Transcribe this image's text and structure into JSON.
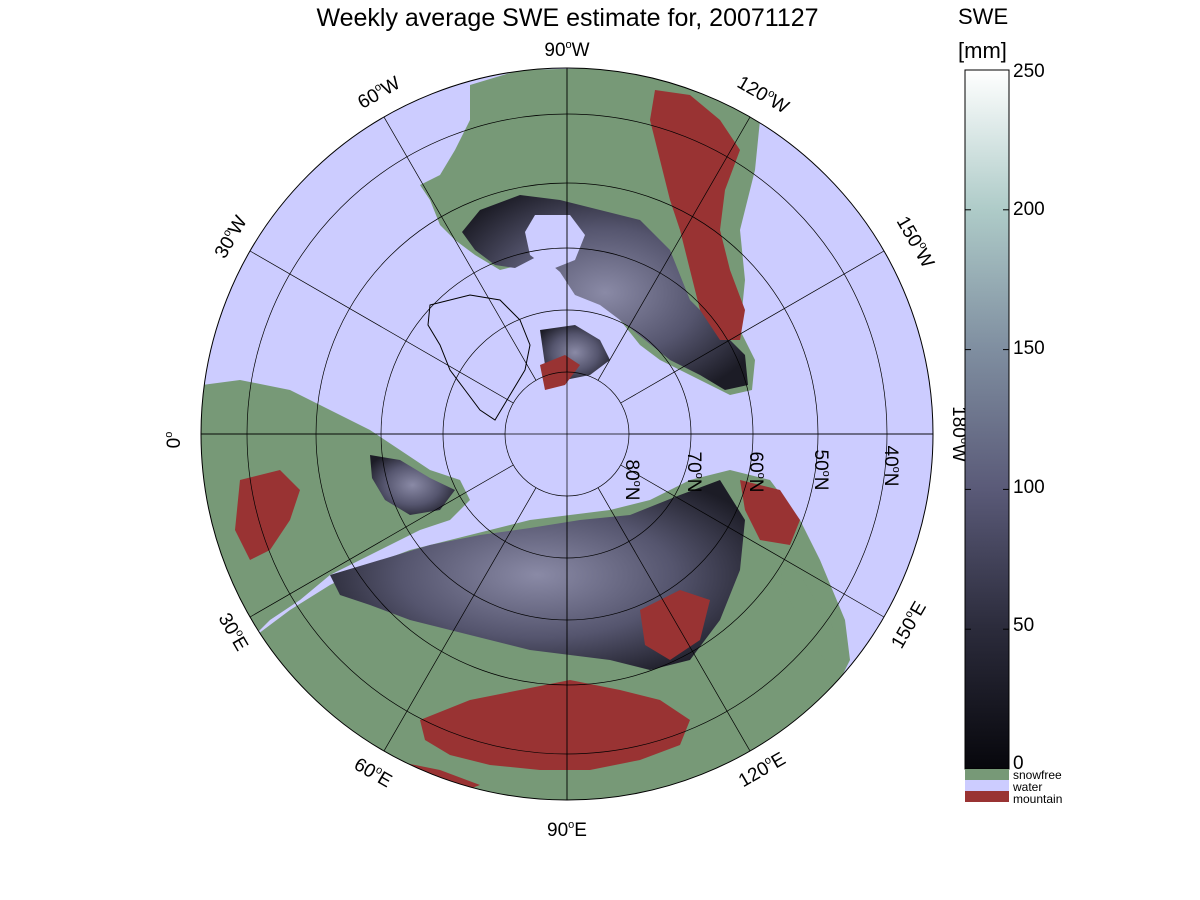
{
  "title": "Weekly average SWE estimate for, 20071127",
  "colorbar": {
    "title": "SWE",
    "unit": "[mm]",
    "ticks": [
      "250",
      "200",
      "150",
      "100",
      "50",
      "0"
    ],
    "min": 0,
    "max": 250,
    "colors": {
      "low": "#0a0a0f",
      "mid": "#5a5a78",
      "high": "#ffffff"
    }
  },
  "legend": [
    {
      "label": "snowfree",
      "color": "#779977"
    },
    {
      "label": "water",
      "color": "#ccccff"
    },
    {
      "label": "mountain",
      "color": "#993333"
    }
  ],
  "map": {
    "projection": "north-polar-stereographic",
    "colors": {
      "ocean": "#ccccff",
      "snowfree": "#779977",
      "mountain": "#993333",
      "grid": "#000000"
    },
    "longitude_labels": [
      {
        "base": "90",
        "sup": "o",
        "dir": "W"
      },
      {
        "base": "120",
        "sup": "o",
        "dir": "W"
      },
      {
        "base": "150",
        "sup": "o",
        "dir": "W"
      },
      {
        "base": "180",
        "sup": "o",
        "dir": "W"
      },
      {
        "base": "150",
        "sup": "o",
        "dir": "E"
      },
      {
        "base": "120",
        "sup": "o",
        "dir": "E"
      },
      {
        "base": "90",
        "sup": "o",
        "dir": "E"
      },
      {
        "base": "60",
        "sup": "o",
        "dir": "E"
      },
      {
        "base": "30",
        "sup": "o",
        "dir": "E"
      },
      {
        "base": "0",
        "sup": "o",
        "dir": ""
      },
      {
        "base": "30",
        "sup": "o",
        "dir": "W"
      },
      {
        "base": "60",
        "sup": "o",
        "dir": "W"
      }
    ],
    "latitude_labels": [
      {
        "base": "80",
        "sup": "o",
        "dir": "N"
      },
      {
        "base": "70",
        "sup": "o",
        "dir": "N"
      },
      {
        "base": "60",
        "sup": "o",
        "dir": "N"
      },
      {
        "base": "50",
        "sup": "o",
        "dir": "N"
      },
      {
        "base": "40",
        "sup": "o",
        "dir": "N"
      }
    ]
  }
}
